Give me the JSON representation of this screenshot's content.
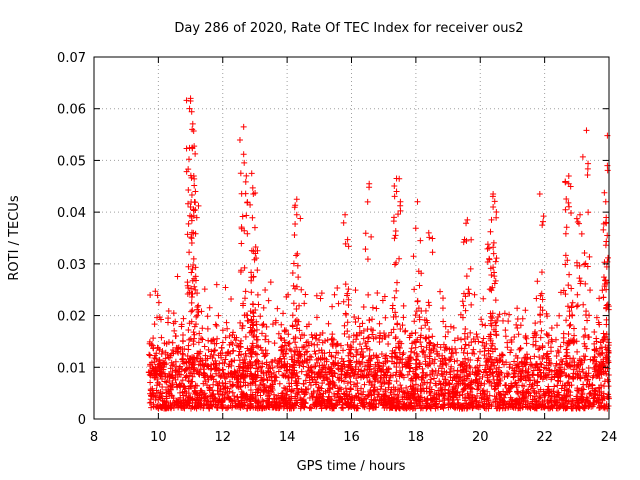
{
  "chart_data": {
    "type": "scatter",
    "title": "Day 286 of 2020, Rate Of TEC Index for receiver ous2",
    "xlabel": "GPS time / hours",
    "ylabel": "ROTI / TECUs",
    "xlim": [
      8,
      24
    ],
    "ylim": [
      0,
      0.07
    ],
    "xticks": [
      8,
      10,
      12,
      14,
      16,
      18,
      20,
      22,
      24
    ],
    "xtick_labels": [
      "8",
      "10",
      "12",
      "14",
      "16",
      "18",
      "20",
      "22",
      "24"
    ],
    "yticks": [
      0,
      0.01,
      0.02,
      0.03,
      0.04,
      0.05,
      0.06,
      0.07
    ],
    "ytick_labels": [
      "0",
      "0.01",
      "0.02",
      "0.03",
      "0.04",
      "0.05",
      "0.06",
      "0.07"
    ],
    "grid": true,
    "marker": "+",
    "marker_color": "#ff0000",
    "data_range_x": [
      9.7,
      24
    ],
    "baseline_band_y": [
      0.002,
      0.015
    ],
    "peaks": [
      {
        "x": 11.0,
        "y": 0.062
      },
      {
        "x": 11.0,
        "y": 0.0615
      },
      {
        "x": 11.05,
        "y": 0.056
      },
      {
        "x": 11.05,
        "y": 0.0525
      },
      {
        "x": 11.1,
        "y": 0.047
      },
      {
        "x": 11.15,
        "y": 0.044
      },
      {
        "x": 12.65,
        "y": 0.0565
      },
      {
        "x": 12.65,
        "y": 0.0512
      },
      {
        "x": 12.9,
        "y": 0.0475
      },
      {
        "x": 12.95,
        "y": 0.0435
      },
      {
        "x": 13.0,
        "y": 0.037
      },
      {
        "x": 14.3,
        "y": 0.0425
      },
      {
        "x": 14.3,
        "y": 0.0395
      },
      {
        "x": 15.8,
        "y": 0.0395
      },
      {
        "x": 16.55,
        "y": 0.0455
      },
      {
        "x": 17.4,
        "y": 0.0465
      },
      {
        "x": 17.4,
        "y": 0.044
      },
      {
        "x": 18.05,
        "y": 0.042
      },
      {
        "x": 18.4,
        "y": 0.036
      },
      {
        "x": 19.6,
        "y": 0.0385
      },
      {
        "x": 20.4,
        "y": 0.0435
      },
      {
        "x": 20.4,
        "y": 0.041
      },
      {
        "x": 20.35,
        "y": 0.0385
      },
      {
        "x": 21.85,
        "y": 0.0435
      },
      {
        "x": 22.75,
        "y": 0.047
      },
      {
        "x": 22.75,
        "y": 0.0455
      },
      {
        "x": 23.1,
        "y": 0.0395
      },
      {
        "x": 23.3,
        "y": 0.0558
      },
      {
        "x": 23.95,
        "y": 0.0548
      },
      {
        "x": 23.95,
        "y": 0.049
      },
      {
        "x": 23.9,
        "y": 0.042
      },
      {
        "x": 23.9,
        "y": 0.038
      }
    ]
  }
}
